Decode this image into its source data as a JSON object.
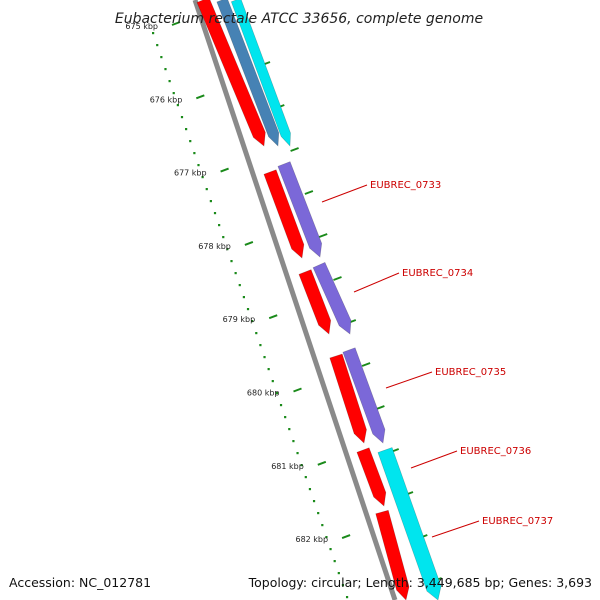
{
  "title": "Eubacterium rectale ATCC 33656, complete genome",
  "accession": "Accession: NC_012781",
  "summary": "Topology: circular; Length: 3,449,685 bp; Genes: 3,693",
  "scale_labels": [
    "675 kbp",
    "676 kbp",
    "677 kbp",
    "678 kbp",
    "679 kbp",
    "680 kbp",
    "681 kbp",
    "682 kbp"
  ],
  "genes": [
    {
      "name": "EUBREC_0733",
      "color": "#cc0000"
    },
    {
      "name": "EUBREC_0734",
      "color": "#cc0000"
    },
    {
      "name": "EUBREC_0735",
      "color": "#cc0000"
    },
    {
      "name": "EUBREC_0736",
      "color": "#cc0000"
    },
    {
      "name": "EUBREC_0737",
      "color": "#cc0000"
    }
  ],
  "colors": {
    "backbone": "#8a8a8a",
    "feature_red": "#ff0000",
    "feature_purple": "#7b68d8",
    "feature_cyan": "#00e5ee",
    "feature_steel": "#4682b4",
    "tick_green": "#1a8a1a",
    "label_line": "#cc0000"
  }
}
